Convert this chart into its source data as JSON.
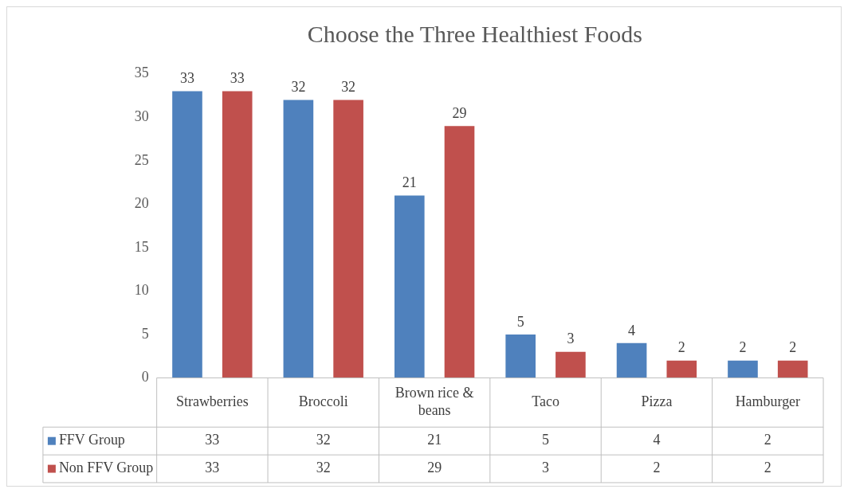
{
  "chart_data": {
    "type": "bar",
    "title": "Choose the Three Healthiest Foods",
    "categories": [
      "Strawberries",
      "Broccoli",
      "Brown rice & beans",
      "Taco",
      "Pizza",
      "Hamburger"
    ],
    "series": [
      {
        "name": "FFV Group",
        "color": "#4f81bd",
        "values": [
          33,
          32,
          21,
          5,
          4,
          2
        ]
      },
      {
        "name": "Non FFV Group",
        "color": "#c0504d",
        "values": [
          33,
          32,
          29,
          3,
          2,
          2
        ]
      }
    ],
    "ylim": [
      0,
      35
    ],
    "yticks": [
      0,
      5,
      10,
      15,
      20,
      25,
      30,
      35
    ],
    "grid": false,
    "legend": "bottom",
    "data_labels": true,
    "annotations": [
      "33",
      "32",
      "21",
      "5",
      "4",
      "2",
      "33",
      "32",
      "29",
      "3",
      "2",
      "2"
    ]
  }
}
